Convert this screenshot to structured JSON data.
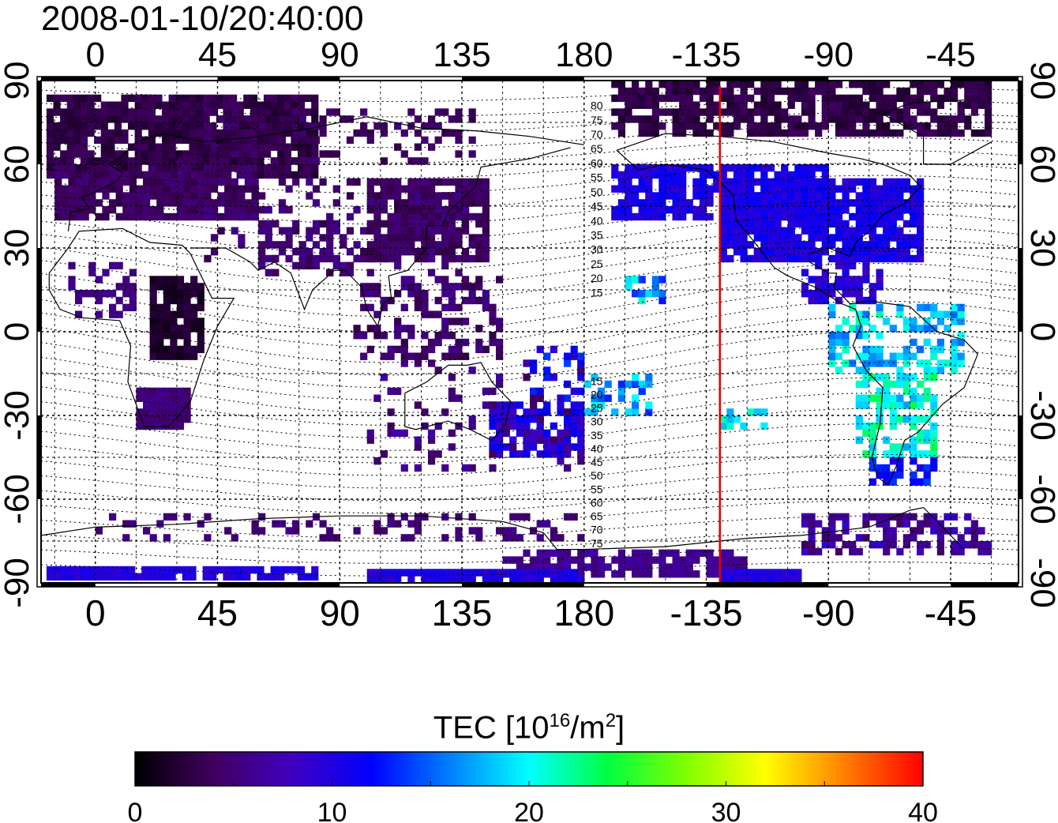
{
  "title": "2008-01-10/20:40:00",
  "map": {
    "top_lon_labels": [
      "0",
      "45",
      "90",
      "135",
      "180",
      "-135",
      "-90",
      "-45"
    ],
    "bottom_lon_labels": [
      "0",
      "45",
      "90",
      "135",
      "180",
      "-135",
      "-90",
      "-45"
    ],
    "left_lat_labels": [
      "90",
      "60",
      "30",
      "0",
      "-30",
      "-60",
      "-90"
    ],
    "right_lat_labels": [
      "90",
      "60",
      "30",
      "0",
      "-30",
      "-60",
      "-90"
    ],
    "lon_ticks": [
      0,
      45,
      90,
      135,
      180,
      225,
      270,
      315
    ],
    "lat_ticks": [
      90,
      60,
      30,
      0,
      -30,
      -60,
      -90
    ],
    "north_contour_labels": [
      "80",
      "75",
      "70",
      "65",
      "60",
      "55",
      "50",
      "45",
      "40",
      "35",
      "30",
      "25",
      "20",
      "15"
    ],
    "south_contour_labels": [
      "15",
      "20",
      "25",
      "30",
      "35",
      "40",
      "45",
      "50",
      "55",
      "60",
      "65",
      "70",
      "75"
    ],
    "red_line_longitude": -130,
    "colors": {
      "frame": "#000000",
      "grid": "#000000",
      "red_line": "#e00000"
    }
  },
  "colorbar": {
    "label_main": "TEC  [10",
    "label_exp": "16",
    "label_mid": "/m",
    "label_exp2": "2",
    "label_end": "]",
    "min": 0,
    "max": 40,
    "tick_labels": [
      "0",
      "10",
      "20",
      "30",
      "40"
    ],
    "colormap": [
      "#000000",
      "#400060",
      "#4000c0",
      "#0000ff",
      "#0080ff",
      "#00ffff",
      "#00ff40",
      "#80ff00",
      "#ffff00",
      "#ff8000",
      "#ff0000"
    ]
  }
}
